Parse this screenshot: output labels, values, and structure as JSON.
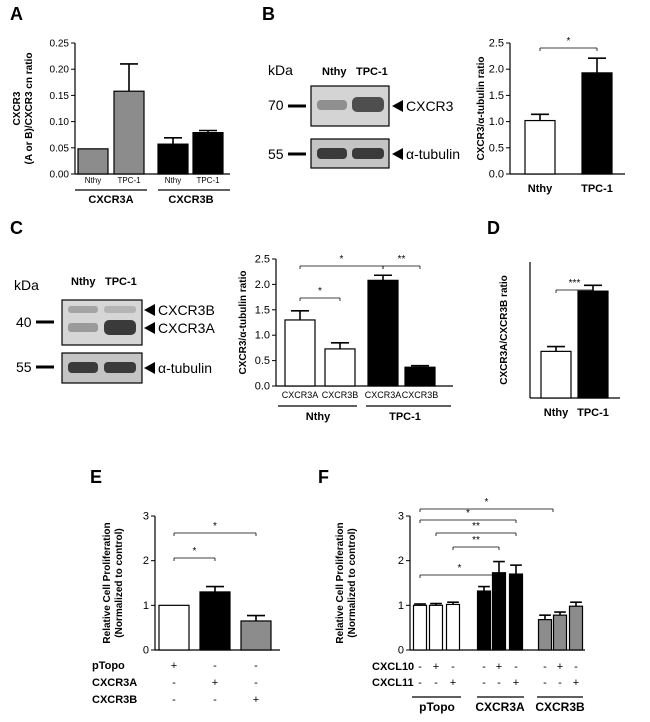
{
  "colors": {
    "light_gray": "#8c8c8c",
    "black": "#000000",
    "white": "#ffffff"
  },
  "panel_labels": [
    "A",
    "B",
    "C",
    "D",
    "E",
    "F"
  ],
  "blot_b": {
    "kda_label": "kDa",
    "lane_labels": [
      "Nthy",
      "TPC-1"
    ],
    "markers": [
      "70",
      "55"
    ],
    "band_labels": [
      "CXCR3",
      "α-tubulin"
    ]
  },
  "blot_c": {
    "kda_label": "kDa",
    "lane_labels": [
      "Nthy",
      "TPC-1"
    ],
    "markers": [
      "40",
      "55"
    ],
    "band_labels": [
      "CXCR3B",
      "CXCR3A",
      "α-tubulin"
    ]
  },
  "chart_data": [
    {
      "panel": "A",
      "type": "bar",
      "ylabel": "CXCR3 (A or B)/CXCR3 cn ratio",
      "ylim": [
        0,
        0.25
      ],
      "yticks": [
        "0.00",
        "0.05",
        "0.10",
        "0.15",
        "0.20",
        "0.25"
      ],
      "categories": [
        "Nthy",
        "TPC-1",
        "Nthy",
        "TPC-1"
      ],
      "groups": [
        "CXCR3A",
        "CXCR3B"
      ],
      "values": [
        0.048,
        0.158,
        0.057,
        0.079
      ],
      "errors": [
        0.0,
        0.052,
        0.012,
        0.004
      ],
      "significance": []
    },
    {
      "panel": "B",
      "type": "bar",
      "ylabel": "CXCR3/α-tubulin ratio",
      "ylim": [
        0,
        2.5
      ],
      "yticks": [
        "0.0",
        "0.5",
        "1.0",
        "1.5",
        "2.0",
        "2.5"
      ],
      "categories": [
        "Nthy",
        "TPC-1"
      ],
      "values": [
        1.02,
        1.93
      ],
      "errors": [
        0.12,
        0.28
      ],
      "significance": [
        {
          "label": "*"
        }
      ]
    },
    {
      "panel": "C",
      "type": "bar",
      "ylabel": "CXCR3/α-tubulin ratio",
      "ylim": [
        0,
        2.5
      ],
      "yticks": [
        "0.0",
        "0.5",
        "1.0",
        "1.5",
        "2.0",
        "2.5"
      ],
      "categories": [
        "CXCR3A",
        "CXCR3B",
        "CXCR3A",
        "CXCR3B"
      ],
      "groups": [
        "Nthy",
        "TPC-1"
      ],
      "values": [
        1.3,
        0.73,
        2.08,
        0.37
      ],
      "errors": [
        0.18,
        0.12,
        0.1,
        0.03
      ],
      "significance": [
        {
          "label": "*"
        },
        {
          "label": "*"
        },
        {
          "label": "**"
        }
      ]
    },
    {
      "panel": "D",
      "type": "bar",
      "ylabel": "CXCR3A/CXCR3B ratio",
      "categories": [
        "Nthy",
        "TPC-1"
      ],
      "values": [
        2.4,
        5.5
      ],
      "errors": [
        0.25,
        0.3
      ],
      "significance": [
        {
          "label": "***"
        }
      ]
    },
    {
      "panel": "E",
      "type": "bar",
      "ylabel": "Relative Cell Proliferation (Normalized to control)",
      "ylim": [
        0,
        3
      ],
      "yticks": [
        "0",
        "1",
        "2",
        "3"
      ],
      "values": [
        1.0,
        1.3,
        0.65
      ],
      "errors": [
        0.0,
        0.12,
        0.12
      ],
      "table_rows": [
        {
          "label": "pTopo",
          "signs": [
            "+",
            "-",
            "-"
          ]
        },
        {
          "label": "CXCR3A",
          "signs": [
            "-",
            "+",
            "-"
          ]
        },
        {
          "label": "CXCR3B",
          "signs": [
            "-",
            "-",
            "+"
          ]
        }
      ],
      "significance": [
        {
          "label": "*"
        },
        {
          "label": "*"
        }
      ]
    },
    {
      "panel": "F",
      "type": "bar",
      "ylabel": "Relative Cell Proliferation (Normalized to control)",
      "ylim": [
        0,
        3
      ],
      "yticks": [
        "0",
        "1",
        "2",
        "3"
      ],
      "groups": [
        "pTopo",
        "CXCR3A",
        "CXCR3B"
      ],
      "values": [
        1.0,
        1.0,
        1.02,
        1.32,
        1.73,
        1.7,
        0.68,
        0.78,
        0.98
      ],
      "errors": [
        0.03,
        0.04,
        0.05,
        0.1,
        0.25,
        0.2,
        0.1,
        0.07,
        0.09
      ],
      "table_rows": [
        {
          "label": "CXCL10",
          "signs": [
            "-",
            "+",
            "-",
            "-",
            "+",
            "-",
            "-",
            "+",
            "-"
          ]
        },
        {
          "label": "CXCL11",
          "signs": [
            "-",
            "-",
            "+",
            "-",
            "-",
            "+",
            "-",
            "-",
            "+"
          ]
        }
      ],
      "significance": [
        {
          "label": "*"
        },
        {
          "label": "**"
        },
        {
          "label": "**"
        },
        {
          "label": "*"
        },
        {
          "label": "*"
        }
      ]
    }
  ]
}
